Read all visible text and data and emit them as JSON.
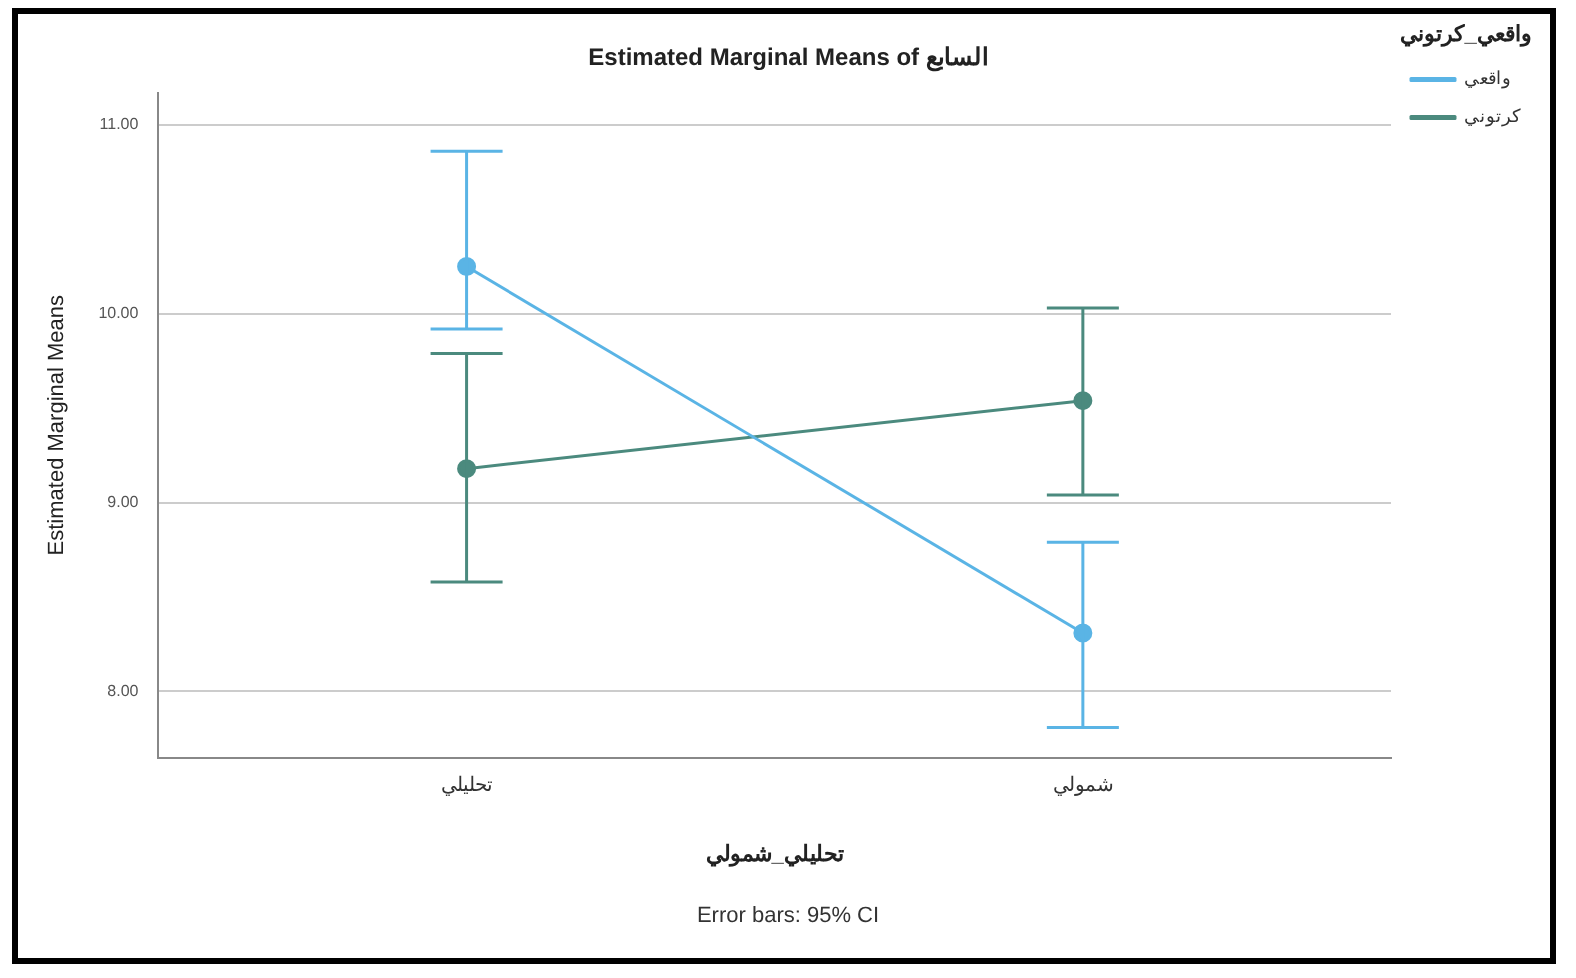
{
  "chart_data": {
    "type": "line",
    "title": "Estimated Marginal Means of السابع",
    "xlabel": "تحليلي_شمولي",
    "ylabel": "Estimated Marginal Means",
    "legend_title": "واقعي_كرتوني",
    "categories": [
      "تحليلي",
      "شمولي"
    ],
    "series": [
      {
        "name": "واقعي",
        "color": "#5ab4e5",
        "values": [
          10.25,
          8.31
        ],
        "errors": [
          [
            9.92,
            10.86
          ],
          [
            7.81,
            8.79
          ]
        ]
      },
      {
        "name": "كرتوني",
        "color": "#4b8a7e",
        "values": [
          9.18,
          9.54
        ],
        "errors": [
          [
            8.58,
            9.79
          ],
          [
            9.04,
            10.03
          ]
        ]
      }
    ],
    "ylim": [
      7.65,
      11.17
    ],
    "yticks": [
      {
        "value": 8,
        "label": "8.00"
      },
      {
        "value": 9,
        "label": "9.00"
      },
      {
        "value": 10,
        "label": "10.00"
      },
      {
        "value": 11,
        "label": "11.00"
      }
    ],
    "grid": "y",
    "legend": "top right",
    "marker": "circle",
    "line_style": "solid",
    "annotations": [
      "Error bars: 95% CI"
    ]
  }
}
